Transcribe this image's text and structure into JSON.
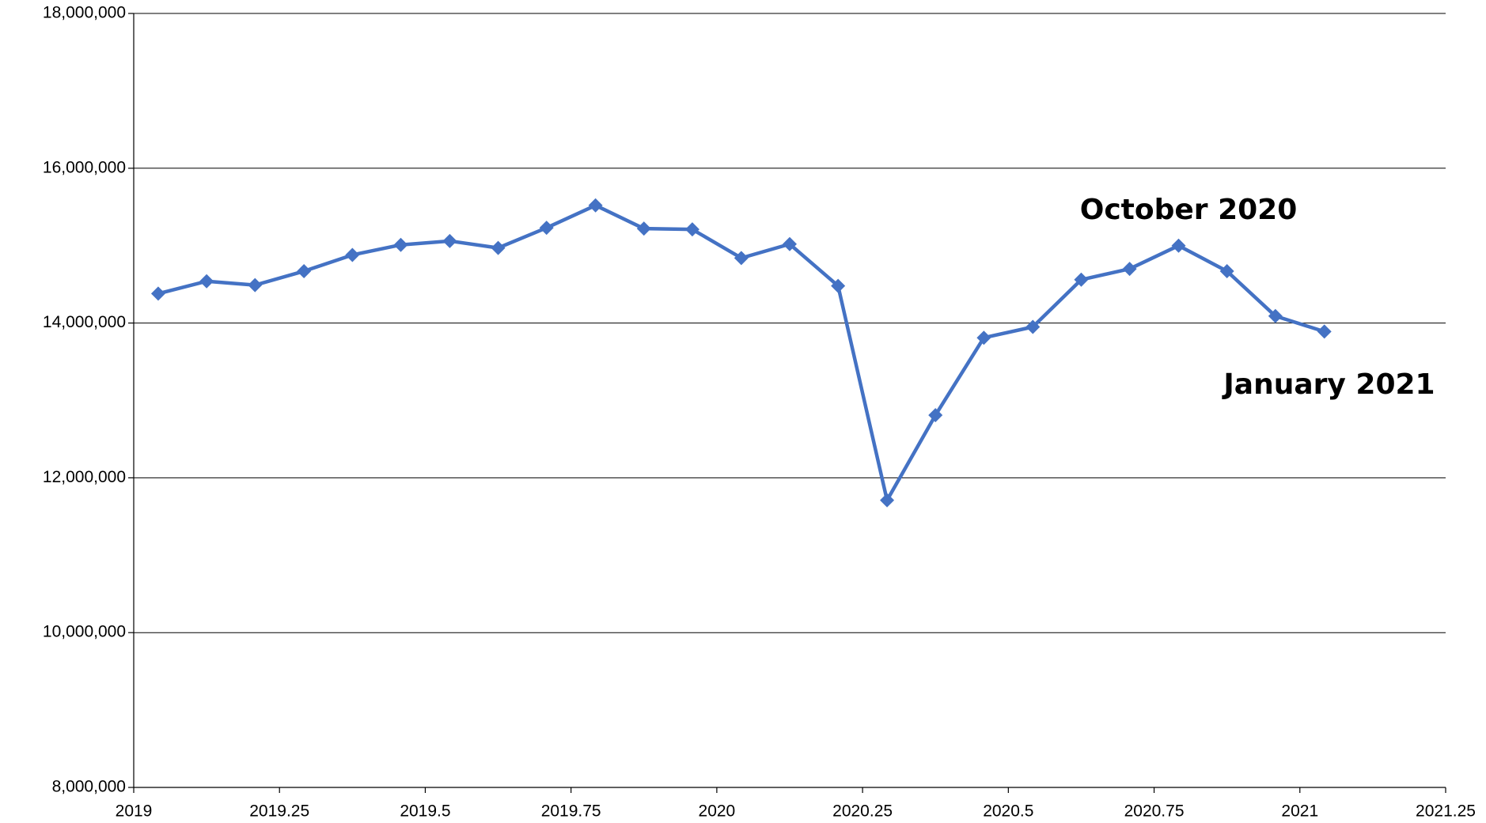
{
  "chart_data": {
    "type": "line",
    "x": [
      2019.042,
      2019.125,
      2019.208,
      2019.292,
      2019.375,
      2019.458,
      2019.542,
      2019.625,
      2019.708,
      2019.792,
      2019.875,
      2019.958,
      2020.042,
      2020.125,
      2020.208,
      2020.292,
      2020.375,
      2020.458,
      2020.542,
      2020.625,
      2020.708,
      2020.792,
      2020.875,
      2020.958,
      2021.042
    ],
    "values": [
      14380000,
      14540000,
      14490000,
      14670000,
      14880000,
      15010000,
      15060000,
      14970000,
      15230000,
      15520000,
      15220000,
      15210000,
      14840000,
      15020000,
      14480000,
      11710000,
      12810000,
      13810000,
      13950000,
      14560000,
      14700000,
      15000000,
      14670000,
      14090000,
      13890000
    ],
    "color": "#4472c4",
    "xlim": [
      2019,
      2021.25
    ],
    "xticks": [
      2019,
      2019.25,
      2019.5,
      2019.75,
      2020,
      2020.25,
      2020.5,
      2020.75,
      2021,
      2021.25
    ],
    "ylim": [
      8000000,
      18000000
    ],
    "yticks": [
      {
        "value": 8000000,
        "label": "8,000,000"
      },
      {
        "value": 10000000,
        "label": "10,000,000"
      },
      {
        "value": 12000000,
        "label": "12,000,000"
      },
      {
        "value": 14000000,
        "label": "14,000,000"
      },
      {
        "value": 16000000,
        "label": "16,000,000"
      },
      {
        "value": 18000000,
        "label": "18,000,000"
      }
    ],
    "grid": true,
    "annotations": [
      {
        "text": "October 2020",
        "color": "#00b050"
      },
      {
        "text": "January 2021",
        "color": "#00b050"
      }
    ]
  }
}
